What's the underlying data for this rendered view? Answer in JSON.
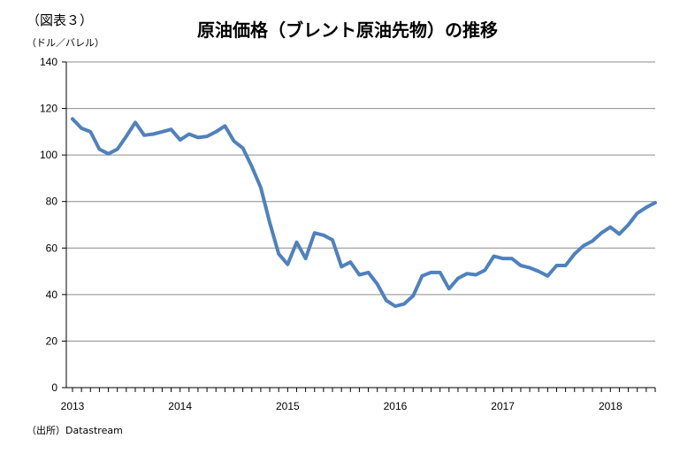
{
  "figure_label": "（図表３）",
  "title": "原油価格（ブレント原油先物）の推移",
  "unit": "（ドル／バレル）",
  "source": "（出所）Datastream",
  "colors": {
    "line": "#4F81BD",
    "grid": "#8c8c8c",
    "axis": "#000000"
  },
  "chart_data": {
    "type": "line",
    "title": "原油価格（ブレント原油先物）の推移",
    "ylabel": "（ドル／バレル）",
    "xlabel": "",
    "ylim": [
      0,
      140
    ],
    "yticks": [
      0,
      20,
      40,
      60,
      80,
      100,
      120,
      140
    ],
    "xlim": [
      "2013-01",
      "2018-06"
    ],
    "xticks": [
      "2013",
      "2014",
      "2015",
      "2016",
      "2017",
      "2018"
    ],
    "grid": true,
    "legend": "none",
    "series": [
      {
        "x": [
          "2013-01",
          "2013-02",
          "2013-03",
          "2013-04",
          "2013-05",
          "2013-06",
          "2013-07",
          "2013-08",
          "2013-09",
          "2013-10",
          "2013-11",
          "2013-12",
          "2014-01",
          "2014-02",
          "2014-03",
          "2014-04",
          "2014-05",
          "2014-06",
          "2014-07",
          "2014-08",
          "2014-09",
          "2014-10",
          "2014-11",
          "2014-12",
          "2015-01",
          "2015-02",
          "2015-03",
          "2015-04",
          "2015-05",
          "2015-06",
          "2015-07",
          "2015-08",
          "2015-09",
          "2015-10",
          "2015-11",
          "2015-12",
          "2016-01",
          "2016-02",
          "2016-03",
          "2016-04",
          "2016-05",
          "2016-06",
          "2016-07",
          "2016-08",
          "2016-09",
          "2016-10",
          "2016-11",
          "2016-12",
          "2017-01",
          "2017-02",
          "2017-03",
          "2017-04",
          "2017-05",
          "2017-06",
          "2017-07",
          "2017-08",
          "2017-09",
          "2017-10",
          "2017-11",
          "2017-12",
          "2018-01",
          "2018-02",
          "2018-03",
          "2018-04",
          "2018-05",
          "2018-06"
        ],
        "values": [
          115.5,
          111.5,
          110,
          102.5,
          100.5,
          102.5,
          108,
          114,
          108.5,
          109,
          110,
          111,
          106.5,
          109,
          107.5,
          108,
          110,
          112.5,
          106,
          103,
          95,
          86,
          71,
          57.5,
          53,
          62.5,
          55.5,
          66.5,
          65.5,
          63.5,
          52,
          54,
          48.5,
          49.5,
          44.5,
          37.5,
          35,
          36,
          39.5,
          48,
          49.5,
          49.5,
          42.5,
          47,
          49,
          48.5,
          50.5,
          56.5,
          55.5,
          55.5,
          52.5,
          51.5,
          50,
          48,
          52.5,
          52.5,
          57.5,
          61,
          63,
          66.5,
          69,
          66,
          70,
          75,
          77.5,
          79.5
        ]
      }
    ]
  }
}
